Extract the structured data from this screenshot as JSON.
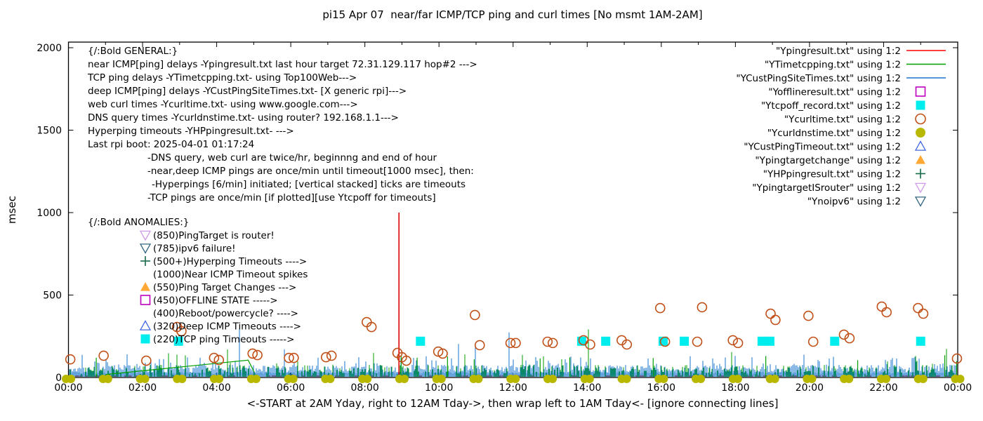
{
  "title": "pi15 Apr 07  near/far ICMP/TCP ping and curl times [No msmt 1AM-2AM]",
  "xlabel": "<-START at 2AM Yday, right to 12AM Tday->, then wrap left to 1AM Tday<- [ignore connecting lines]",
  "ylabel": "msec",
  "chart_data": {
    "type": "scatter",
    "x_tick_labels": [
      "00:00",
      "02:00",
      "04:00",
      "06:00",
      "08:00",
      "10:00",
      "12:00",
      "14:00",
      "16:00",
      "18:00",
      "20:00",
      "22:00",
      "00:00"
    ],
    "x_hours_span": 24,
    "y_ticks": [
      0,
      500,
      1000,
      1500,
      2000
    ],
    "ylim": [
      0,
      2000
    ],
    "grid": false,
    "series": [
      {
        "name": "Ypingresult.txt",
        "style": "line",
        "color": "#cc0000",
        "desc": "near ICMP ping delays: dashed baseline ~5-10 msec across full width; one timeout spike to 1000 msec at t=8.92h"
      },
      {
        "name": "YTimetcpping.txt",
        "style": "line",
        "color": "#009e00",
        "desc": "TCP ping delays: noise band 0-90 msec",
        "spikes": [
          [
            0.75,
            120
          ],
          [
            8.98,
            135
          ],
          [
            9.41,
            120
          ],
          [
            10.23,
            128
          ],
          [
            10.95,
            110
          ],
          [
            12.73,
            115
          ],
          [
            13.53,
            122
          ],
          [
            15.78,
            118
          ],
          [
            18.82,
            130
          ],
          [
            21.3,
            105
          ],
          [
            23.65,
            135
          ],
          [
            23.97,
            100
          ]
        ],
        "connector": [
          [
            1.0,
            18
          ],
          [
            4.85,
            105
          ],
          [
            5.02,
            30
          ]
        ]
      },
      {
        "name": "YCustPingSiteTimes.txt",
        "style": "line",
        "color": "#1874cd",
        "desc": "deep ICMP ping delays: dense noise band 0-110 msec"
      },
      {
        "name": "Yofflineresult.txt",
        "style": "square-open",
        "color": "#bf00bf",
        "points": []
      },
      {
        "name": "Ytcpoff_record.txt",
        "style": "square-fill",
        "color": "#00eded",
        "points": [
          [
            2.97,
            220
          ],
          [
            9.5,
            220
          ],
          [
            13.85,
            220
          ],
          [
            14.5,
            220
          ],
          [
            16.05,
            220
          ],
          [
            16.62,
            220
          ],
          [
            18.72,
            220
          ],
          [
            18.93,
            220
          ],
          [
            20.68,
            220
          ],
          [
            23.0,
            220
          ]
        ]
      },
      {
        "name": "Ycurltime.txt",
        "style": "circle-open",
        "color": "#c05018",
        "points": [
          [
            0.05,
            110
          ],
          [
            0.95,
            132
          ],
          [
            2.1,
            102
          ],
          [
            2.93,
            306
          ],
          [
            3.05,
            281
          ],
          [
            3.93,
            119
          ],
          [
            4.06,
            106
          ],
          [
            4.97,
            145
          ],
          [
            5.1,
            136
          ],
          [
            5.95,
            119
          ],
          [
            6.08,
            119
          ],
          [
            6.95,
            123
          ],
          [
            7.1,
            132
          ],
          [
            8.05,
            336
          ],
          [
            8.18,
            306
          ],
          [
            8.88,
            149
          ],
          [
            9.0,
            123
          ],
          [
            9.12,
            102
          ],
          [
            9.98,
            157
          ],
          [
            10.1,
            145
          ],
          [
            10.97,
            379
          ],
          [
            11.1,
            196
          ],
          [
            11.93,
            209
          ],
          [
            12.07,
            209
          ],
          [
            12.93,
            217
          ],
          [
            13.07,
            209
          ],
          [
            13.9,
            226
          ],
          [
            14.08,
            200
          ],
          [
            14.93,
            226
          ],
          [
            15.07,
            200
          ],
          [
            15.97,
            421
          ],
          [
            16.1,
            217
          ],
          [
            16.97,
            217
          ],
          [
            17.1,
            426
          ],
          [
            17.93,
            226
          ],
          [
            18.07,
            209
          ],
          [
            18.95,
            387
          ],
          [
            19.08,
            349
          ],
          [
            19.97,
            374
          ],
          [
            20.1,
            217
          ],
          [
            20.93,
            260
          ],
          [
            21.08,
            238
          ],
          [
            21.95,
            430
          ],
          [
            22.08,
            396
          ],
          [
            22.93,
            421
          ],
          [
            23.07,
            387
          ],
          [
            23.98,
            115
          ]
        ]
      },
      {
        "name": "Ycurldnstime.txt",
        "style": "circle-fill",
        "color": "#b8b800",
        "desc": "DNS query times ~0 msec, pair of points at every hour mark",
        "hours": [
          0,
          1,
          2,
          3,
          4,
          5,
          6,
          7,
          8,
          9,
          10,
          11,
          12,
          13,
          14,
          15,
          16,
          17,
          18,
          19,
          20,
          21,
          22,
          23,
          24
        ]
      },
      {
        "name": "YCustPingTimeout.txt",
        "style": "tri-up-open",
        "color": "#4169e1",
        "points": []
      },
      {
        "name": "Ypingtargetchange",
        "style": "tri-up-fill",
        "color": "#ffa835",
        "points": []
      },
      {
        "name": "YHPpingresult.txt",
        "style": "plus",
        "color": "#166b49",
        "points": []
      },
      {
        "name": "YpingtargetISrouter",
        "style": "tri-down-open",
        "color": "#cf9be8",
        "points": []
      },
      {
        "name": "Ynoipv6",
        "style": "tri-down-open",
        "color": "#32657f",
        "points": []
      }
    ],
    "red_timeout_spike": {
      "t": 8.92,
      "v_from": 0,
      "v_to": 1000
    }
  },
  "legend": [
    {
      "label": "\"Ypingresult.txt\" using 1:2",
      "type": "line",
      "color": "#ff0000"
    },
    {
      "label": "\"YTimetcpping.txt\" using 1:2",
      "type": "line",
      "color": "#009e00"
    },
    {
      "label": "\"YCustPingSiteTimes.txt\" using 1:2",
      "type": "line",
      "color": "#1874cd"
    },
    {
      "label": "\"Yofflineresult.txt\" using 1:2",
      "type": "square-open",
      "color": "#bf00bf"
    },
    {
      "label": "\"Ytcpoff_record.txt\" using 1:2",
      "type": "square-fill",
      "color": "#00eded"
    },
    {
      "label": "\"Ycurltime.txt\" using 1:2",
      "type": "circle-open",
      "color": "#c05018"
    },
    {
      "label": "\"Ycurldnstime.txt\" using 1:2",
      "type": "circle-fill",
      "color": "#b8b800"
    },
    {
      "label": "\"YCustPingTimeout.txt\" using 1:2",
      "type": "tri-up-open",
      "color": "#4169e1"
    },
    {
      "label": "\"Ypingtargetchange\" using 1:2",
      "type": "tri-up-fill",
      "color": "#ffa835"
    },
    {
      "label": "\"YHPpingresult.txt\" using 1:2",
      "type": "plus",
      "color": "#166b49"
    },
    {
      "label": "\"YpingtargetISrouter\" using 1:2",
      "type": "tri-down-open",
      "color": "#cf9be8"
    },
    {
      "label": "\"Ynoipv6\" using 1:2",
      "type": "tri-down-open",
      "color": "#32657f"
    }
  ],
  "annotations": {
    "general": [
      {
        "text": "{/:Bold GENERAL:}",
        "indent": 0
      },
      {
        "text": "near ICMP[ping] delays -Ypingresult.txt last hour target 72.31.129.117 hop#2 --->",
        "indent": 0
      },
      {
        "text": "TCP ping delays -YTimetcpping.txt- using Top100Web--->",
        "indent": 0
      },
      {
        "text": "deep ICMP[ping] delays -YCustPingSiteTimes.txt- [X generic rpi]--->",
        "indent": 0
      },
      {
        "text": "web curl times -Ycurltime.txt- using www.google.com--->",
        "indent": 0
      },
      {
        "text": "DNS query times -Ycurldnstime.txt- using router? 192.168.1.1--->",
        "indent": 0
      },
      {
        "text": "Hyperping timeouts -YHPpingresult.txt- --->",
        "indent": 0
      },
      {
        "text": "Last rpi boot: 2025-04-01 01:17:24",
        "indent": 0
      },
      {
        "text": "-DNS query, web curl are twice/hr, beginnng and end of hour",
        "indent": 1
      },
      {
        "text": "-near,deep ICMP pings are once/min until timeout[1000 msec], then:",
        "indent": 1
      },
      {
        "text": "-Hyperpings [6/min] initiated; [vertical stacked] ticks are timeouts",
        "indent": 2
      },
      {
        "text": "-TCP pings are once/min [if plotted][use Ytcpoff for timeouts]",
        "indent": 1
      }
    ],
    "anomalies_header": "{/:Bold ANOMALIES:}",
    "anomalies": [
      {
        "marker": "tri-down-open",
        "color": "#cf9be8",
        "text": "(850)PingTarget is router!"
      },
      {
        "marker": "tri-down-open",
        "color": "#32657f",
        "text": "(785)ipv6 failure!"
      },
      {
        "marker": "plus",
        "color": "#166b49",
        "text": "(500+)Hyperping Timeouts ---->"
      },
      {
        "marker": null,
        "color": null,
        "text": "(1000)Near ICMP Timeout spikes"
      },
      {
        "marker": "tri-up-fill",
        "color": "#ffa835",
        "text": "(550)Ping Target Changes --->"
      },
      {
        "marker": "square-open",
        "color": "#bf00bf",
        "text": "(450)OFFLINE STATE ----->"
      },
      {
        "marker": null,
        "color": null,
        "text": "(400)Reboot/powercycle? ---->"
      },
      {
        "marker": "tri-up-open",
        "color": "#4169e1",
        "text": "(320)Deep ICMP Timeouts ---->"
      },
      {
        "marker": "square-fill",
        "color": "#00eded",
        "text": "(220)TCP ping Timeouts ----->"
      }
    ]
  }
}
